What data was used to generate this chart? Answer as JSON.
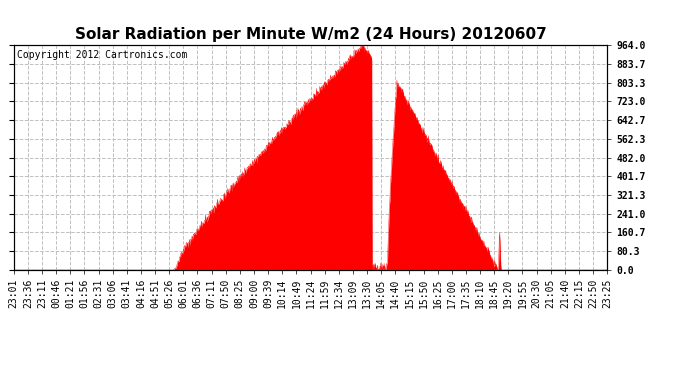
{
  "title": "Solar Radiation per Minute W/m2 (24 Hours) 20120607",
  "copyright_text": "Copyright 2012 Cartronics.com",
  "yticks": [
    0.0,
    80.3,
    160.7,
    241.0,
    321.3,
    401.7,
    482.0,
    562.3,
    642.7,
    723.0,
    803.3,
    883.7,
    964.0
  ],
  "ymax": 964.0,
  "ymin": 0.0,
  "fill_color": "#FF0000",
  "line_color": "#FF0000",
  "dashed_line_color": "#FF0000",
  "bg_color": "#FFFFFF",
  "grid_color": "#C0C0C0",
  "title_fontsize": 11,
  "axis_label_fontsize": 7,
  "copyright_fontsize": 7,
  "xtick_labels": [
    "23:01",
    "23:36",
    "23:11",
    "00:46",
    "01:21",
    "01:56",
    "02:31",
    "03:06",
    "03:41",
    "04:16",
    "04:51",
    "05:26",
    "06:01",
    "06:36",
    "07:11",
    "07:50",
    "08:25",
    "09:00",
    "09:39",
    "10:14",
    "10:49",
    "11:24",
    "11:59",
    "12:34",
    "13:09",
    "13:30",
    "14:05",
    "14:40",
    "15:15",
    "15:50",
    "16:25",
    "17:00",
    "17:35",
    "18:10",
    "18:45",
    "19:20",
    "19:55",
    "20:30",
    "21:05",
    "21:40",
    "22:15",
    "22:50",
    "23:25"
  ]
}
